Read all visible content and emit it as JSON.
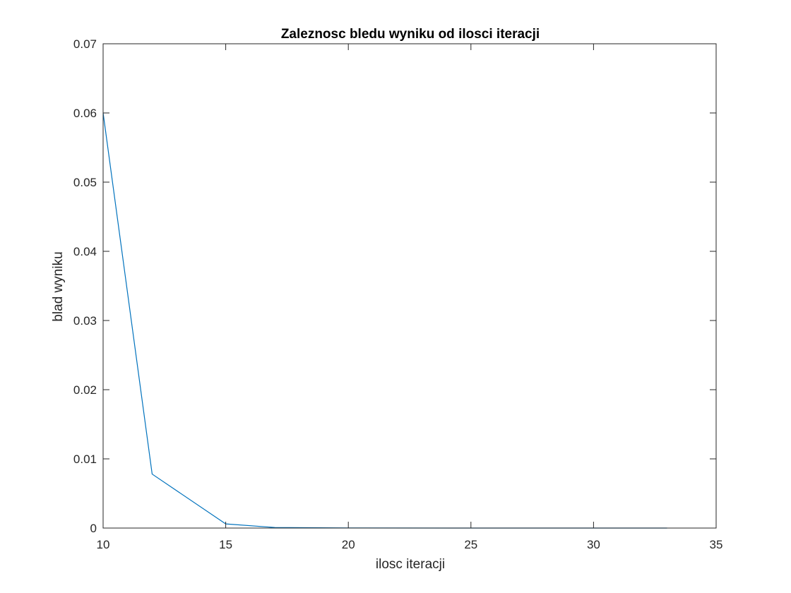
{
  "chart_data": {
    "type": "line",
    "title": "Zaleznosc bledu wyniku od ilosci iteracji",
    "xlabel": "ilosc iteracji",
    "ylabel": "blad wyniku",
    "xlim": [
      10,
      35
    ],
    "ylim": [
      0,
      0.07
    ],
    "xticks": [
      "10",
      "15",
      "20",
      "25",
      "30",
      "35"
    ],
    "yticks": [
      "0",
      "0.01",
      "0.02",
      "0.03",
      "0.04",
      "0.05",
      "0.06",
      "0.07"
    ],
    "grid": false,
    "series": [
      {
        "color": "#0072BD",
        "x": [
          10,
          12,
          15,
          17,
          20,
          25,
          30,
          33
        ],
        "y": [
          0.06,
          0.0078,
          0.0006,
          8e-05,
          1e-05,
          0.0,
          0.0,
          0.0
        ]
      }
    ]
  },
  "colors": {
    "axis": "#262626",
    "line": "#0072BD",
    "background": "#ffffff"
  }
}
